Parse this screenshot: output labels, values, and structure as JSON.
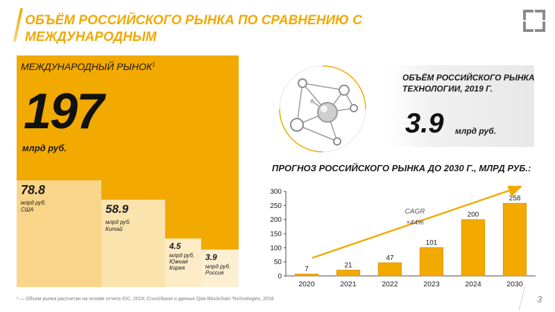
{
  "header": {
    "title": "ОБЪЁМ РОССИЙСКОГО РЫНКА ПО СРАВНЕНИЮ С МЕЖДУНАРОДНЫМ"
  },
  "international": {
    "label": "МЕЖДУНАРОДНЫЙ РЫНОК",
    "footnote_mark": "1",
    "value": "197",
    "unit": "млрд руб."
  },
  "countries": [
    {
      "value": "78.8",
      "unit": "млрд руб.",
      "name": "США"
    },
    {
      "value": "58.9",
      "unit": "млрд руб.",
      "name": "Китай"
    },
    {
      "value": "4.5",
      "unit": "млрд руб. Южная Корея",
      "name": ""
    },
    {
      "value": "3.9",
      "unit": "млрд руб. Россия",
      "name": ""
    }
  ],
  "russia": {
    "title": "ОБЪЁМ РОССИЙСКОГО РЫНКА ТЕХНОЛОГИИ, 2019 г.",
    "value": "3.9",
    "unit": "млрд руб."
  },
  "forecast_title": "ПРОГНОЗ РОССИЙСКОГО РЫНКА ДО 2030 г., млрд руб.:",
  "chart_data": {
    "type": "bar",
    "categories": [
      "2020",
      "2021",
      "2022",
      "2023",
      "2024",
      "2030"
    ],
    "values": [
      7,
      21,
      47,
      101,
      200,
      258
    ],
    "ylim": [
      0,
      300
    ],
    "yticks": [
      0,
      50,
      100,
      150,
      200,
      250,
      300
    ],
    "grid": false,
    "bar_color": "#F2A900",
    "annotation": {
      "line1": "CAGR",
      "line2": "+44%"
    }
  },
  "footer": {
    "footnote": "¹ — Объем рынка рассчитан на основе отчета IDC, 2019; Crunchbase и данных Qiwi Blockchain Technologies, 2018",
    "page_number": "3"
  },
  "colors": {
    "accent": "#F2A900",
    "text": "#1a1a1a"
  }
}
